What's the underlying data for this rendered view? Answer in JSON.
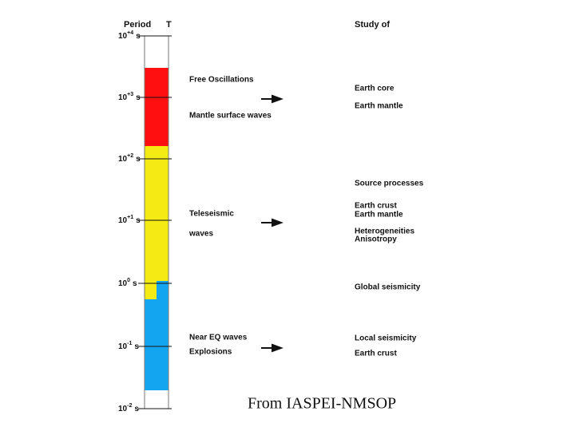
{
  "header": {
    "period": "Period",
    "t": "T",
    "study": "Study of"
  },
  "axis": [
    {
      "base": "10",
      "exp": "+4",
      "unit": "s"
    },
    {
      "base": "10",
      "exp": "+3",
      "unit": "s"
    },
    {
      "base": "10",
      "exp": "+2",
      "unit": "s"
    },
    {
      "base": "10",
      "exp": "+1",
      "unit": "s"
    },
    {
      "base": "10",
      "exp": "0",
      "unit": "s"
    },
    {
      "base": "10",
      "exp": "-1",
      "unit": "s"
    },
    {
      "base": "10",
      "exp": "-2",
      "unit": "s"
    }
  ],
  "waves": [
    "Free Oscillations",
    "Mantle surface waves",
    "Teleseismic",
    "waves",
    "Near EQ waves",
    "Explosions"
  ],
  "study": [
    "Earth core",
    "Earth mantle",
    "Source processes",
    "Earth crust",
    "Earth mantle",
    "Heterogeneities",
    "Anisotropy",
    "Global seismicity",
    "Local seismicity",
    "Earth crust"
  ],
  "footer": "From IASPEI-NMSOP"
}
